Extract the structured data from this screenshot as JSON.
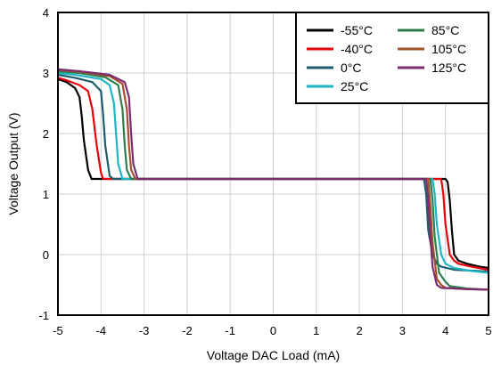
{
  "chart_data": {
    "type": "line",
    "title": "",
    "xlabel": "Voltage DAC Load (mA)",
    "ylabel": "Voltage Output (V)",
    "xlim": [
      -5,
      5
    ],
    "ylim": [
      -1,
      4
    ],
    "xticks": [
      "-5",
      "-4",
      "-3",
      "-2",
      "-1",
      "0",
      "1",
      "2",
      "3",
      "4",
      "5"
    ],
    "yticks": [
      "-1",
      "0",
      "1",
      "2",
      "3",
      "4"
    ],
    "grid": true,
    "legend_position": "top-right",
    "series": [
      {
        "name": "-55°C",
        "color": "#000000",
        "x": [
          -5,
          -4.8,
          -4.6,
          -4.5,
          -4.45,
          -4.4,
          -4.3,
          -4.22,
          -4.2,
          4.0,
          4.05,
          4.1,
          4.15,
          4.2,
          4.3,
          4.5,
          4.8,
          5
        ],
        "y": [
          2.9,
          2.85,
          2.75,
          2.6,
          2.3,
          1.9,
          1.4,
          1.25,
          1.25,
          1.25,
          1.2,
          0.9,
          0.4,
          0.0,
          -0.1,
          -0.15,
          -0.2,
          -0.22
        ]
      },
      {
        "name": "-40°C",
        "color": "#e8000b",
        "x": [
          -5,
          -4.8,
          -4.5,
          -4.3,
          -4.2,
          -4.1,
          -4.0,
          -3.95,
          -3.9,
          3.9,
          3.95,
          4.0,
          4.1,
          4.2,
          4.3,
          4.6,
          5
        ],
        "y": [
          2.92,
          2.88,
          2.8,
          2.7,
          2.4,
          1.8,
          1.35,
          1.25,
          1.25,
          1.25,
          1.0,
          0.5,
          0.0,
          -0.1,
          -0.15,
          -0.2,
          -0.25
        ]
      },
      {
        "name": "0°C",
        "color": "#1f5c6e",
        "x": [
          -5,
          -4.6,
          -4.2,
          -4.0,
          -3.95,
          -3.9,
          -3.8,
          -3.72,
          -3.7,
          3.5,
          3.55,
          3.6,
          3.7,
          3.8,
          3.9,
          4.2,
          5
        ],
        "y": [
          2.97,
          2.92,
          2.85,
          2.7,
          2.3,
          1.8,
          1.3,
          1.25,
          1.25,
          1.25,
          1.0,
          0.4,
          0.0,
          -0.15,
          -0.2,
          -0.25,
          -0.28
        ]
      },
      {
        "name": "25°C",
        "color": "#1fb5c3",
        "x": [
          -5,
          -4.6,
          -4.0,
          -3.8,
          -3.7,
          -3.65,
          -3.6,
          -3.5,
          -3.45,
          3.7,
          3.75,
          3.8,
          3.9,
          4.0,
          4.2,
          4.6,
          5
        ],
        "y": [
          3.0,
          2.97,
          2.9,
          2.8,
          2.5,
          2.0,
          1.5,
          1.25,
          1.25,
          1.25,
          1.0,
          0.5,
          0.0,
          -0.15,
          -0.22,
          -0.27,
          -0.3
        ]
      },
      {
        "name": "85°C",
        "color": "#2e7d4f",
        "x": [
          -5,
          -4.5,
          -3.9,
          -3.6,
          -3.5,
          -3.45,
          -3.4,
          -3.3,
          -3.28,
          3.65,
          3.7,
          3.75,
          3.85,
          4.0,
          4.1,
          4.5,
          5
        ],
        "y": [
          3.03,
          3.0,
          2.93,
          2.8,
          2.4,
          1.8,
          1.4,
          1.25,
          1.25,
          1.25,
          0.9,
          0.3,
          -0.3,
          -0.45,
          -0.52,
          -0.56,
          -0.58
        ]
      },
      {
        "name": "105°C",
        "color": "#a0522d",
        "x": [
          -5,
          -4.5,
          -3.8,
          -3.5,
          -3.4,
          -3.35,
          -3.3,
          -3.2,
          -3.15,
          3.6,
          3.65,
          3.7,
          3.8,
          3.9,
          4.0,
          4.5,
          5
        ],
        "y": [
          3.05,
          3.02,
          2.95,
          2.82,
          2.4,
          1.8,
          1.4,
          1.25,
          1.25,
          1.25,
          0.8,
          0.2,
          -0.4,
          -0.5,
          -0.55,
          -0.57,
          -0.58
        ]
      },
      {
        "name": "125°C",
        "color": "#7b2d6e",
        "x": [
          -5,
          -4.5,
          -3.8,
          -3.45,
          -3.35,
          -3.3,
          -3.25,
          -3.15,
          -3.1,
          3.55,
          3.6,
          3.65,
          3.7,
          3.8,
          3.9,
          4.5,
          5
        ],
        "y": [
          3.06,
          3.03,
          2.97,
          2.85,
          2.6,
          2.0,
          1.5,
          1.25,
          1.25,
          1.25,
          0.9,
          0.3,
          -0.2,
          -0.5,
          -0.55,
          -0.57,
          -0.58
        ]
      }
    ]
  }
}
